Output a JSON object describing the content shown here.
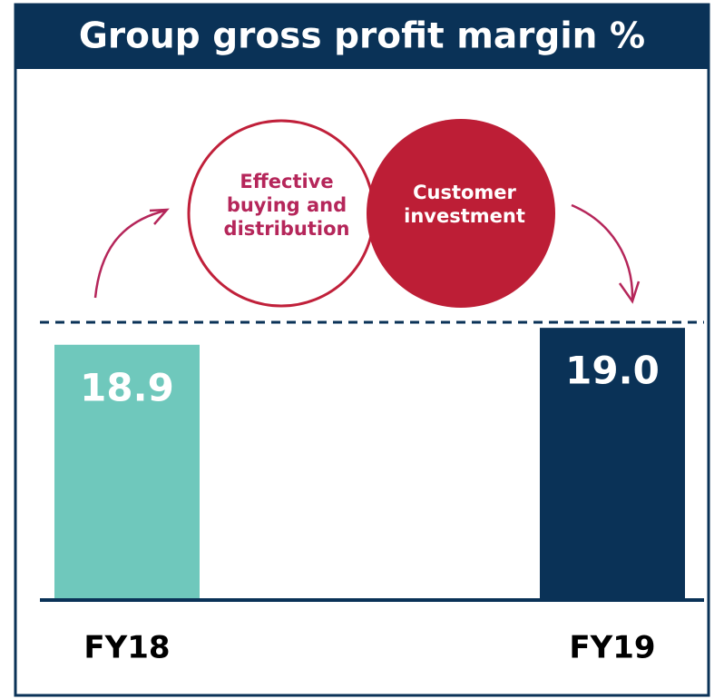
{
  "chart_data": {
    "type": "bar",
    "title": "Group gross profit margin %",
    "categories": [
      "FY18",
      "FY19"
    ],
    "values": [
      18.9,
      19.0
    ],
    "value_labels": [
      "18.9",
      "19.0"
    ],
    "colors": [
      "#6fc8bc",
      "#0a3257"
    ],
    "ylim": [
      17.4,
      20.0
    ],
    "annotations": [
      {
        "lines": [
          "Effective",
          "buying and",
          "distribution"
        ]
      },
      {
        "lines": [
          "Customer",
          "investment"
        ]
      }
    ]
  }
}
